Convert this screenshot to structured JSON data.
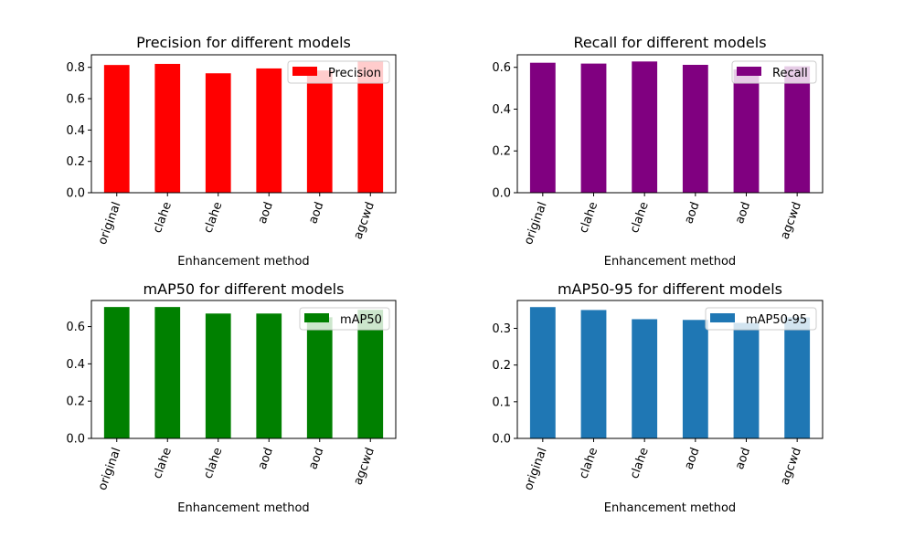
{
  "chart_data": [
    {
      "type": "bar",
      "title": "Precision for different models",
      "xlabel": "Enhancement method",
      "ylabel": "",
      "categories": [
        "original",
        "clahe",
        "clahe",
        "aod",
        "aod",
        "agcwd"
      ],
      "series": [
        {
          "name": "Precision",
          "values": [
            0.815,
            0.822,
            0.762,
            0.793,
            0.78,
            0.84
          ],
          "color": "#ff0000"
        }
      ],
      "ylim": [
        0,
        0.88
      ],
      "yticks": [
        "0.0",
        "0.2",
        "0.4",
        "0.6",
        "0.8"
      ],
      "legend_position": "top-right",
      "grid": false
    },
    {
      "type": "bar",
      "title": "Recall for different models",
      "xlabel": "Enhancement method",
      "ylabel": "",
      "categories": [
        "original",
        "clahe",
        "clahe",
        "aod",
        "aod",
        "agcwd"
      ],
      "series": [
        {
          "name": "Recall",
          "values": [
            0.622,
            0.618,
            0.628,
            0.612,
            0.59,
            0.605
          ],
          "color": "#800080"
        }
      ],
      "ylim": [
        0,
        0.66
      ],
      "yticks": [
        "0.0",
        "0.2",
        "0.4",
        "0.6"
      ],
      "legend_position": "top-right",
      "grid": false
    },
    {
      "type": "bar",
      "title": "mAP50 for different models",
      "xlabel": "Enhancement method",
      "ylabel": "",
      "categories": [
        "original",
        "clahe",
        "clahe",
        "aod",
        "aod",
        "agcwd"
      ],
      "series": [
        {
          "name": "mAP50",
          "values": [
            0.705,
            0.705,
            0.67,
            0.67,
            0.65,
            0.69
          ],
          "color": "#008000"
        }
      ],
      "ylim": [
        0,
        0.74
      ],
      "yticks": [
        "0.0",
        "0.2",
        "0.4",
        "0.6"
      ],
      "legend_position": "top-right",
      "grid": false
    },
    {
      "type": "bar",
      "title": "mAP50-95 for different models",
      "xlabel": "Enhancement method",
      "ylabel": "",
      "categories": [
        "original",
        "clahe",
        "clahe",
        "aod",
        "aod",
        "agcwd"
      ],
      "series": [
        {
          "name": "mAP50-95",
          "values": [
            0.358,
            0.35,
            0.325,
            0.323,
            0.315,
            0.33
          ],
          "color": "#1f77b4"
        }
      ],
      "ylim": [
        0,
        0.376
      ],
      "yticks": [
        "0.0",
        "0.1",
        "0.2",
        "0.3"
      ],
      "legend_position": "top-right",
      "grid": false
    }
  ]
}
